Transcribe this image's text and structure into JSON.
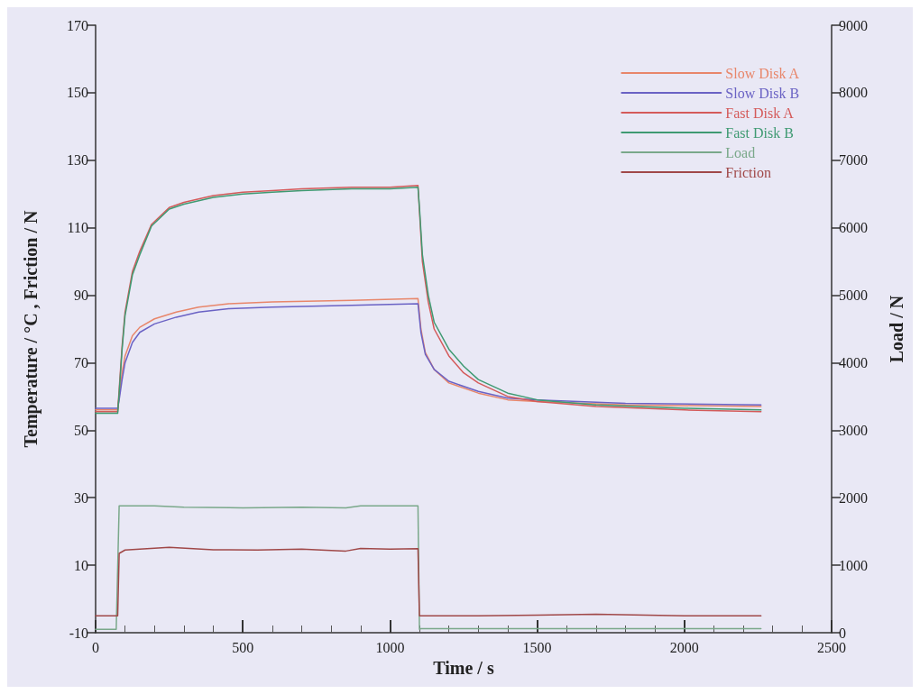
{
  "chart_data": {
    "type": "line",
    "xlabel": "Time / s",
    "ylabel": "Temperature / °C , Friction / N",
    "y2label": "Load / N",
    "xlim": [
      0,
      2500
    ],
    "xticks": [
      0,
      500,
      1000,
      1500,
      2000,
      2500
    ],
    "ylim": [
      -10,
      170
    ],
    "yticks": [
      -10,
      10,
      30,
      50,
      70,
      90,
      110,
      130,
      150,
      170
    ],
    "y2lim": [
      0,
      9000
    ],
    "y2ticks": [
      0,
      1000,
      2000,
      3000,
      4000,
      5000,
      6000,
      7000,
      8000,
      9000
    ],
    "grid": false,
    "legend": "top right",
    "marker": "none",
    "line_style": "solid",
    "series": [
      {
        "name": "Slow Disk A",
        "color": "#e8866a",
        "x": [
          0,
          75,
          80,
          90,
          100,
          125,
          150,
          200,
          274,
          350,
          452,
          600,
          870,
          1095,
          1105,
          1120,
          1150,
          1200,
          1300,
          1400,
          1500,
          1800,
          2260
        ],
        "values": [
          56,
          56,
          60,
          67,
          72,
          78,
          80.5,
          83,
          85,
          86.5,
          87.5,
          88,
          88.5,
          89,
          80,
          73,
          68,
          64,
          61,
          59,
          58.5,
          57.5,
          57
        ]
      },
      {
        "name": "Slow Disk B",
        "color": "#6a62c4",
        "x": [
          0,
          75,
          80,
          90,
          100,
          125,
          150,
          200,
          274,
          350,
          452,
          600,
          870,
          1095,
          1105,
          1120,
          1150,
          1200,
          1300,
          1400,
          1500,
          1800,
          2260
        ],
        "values": [
          56.5,
          56.5,
          59,
          65,
          70,
          76,
          79,
          81.5,
          83.5,
          85,
          86,
          86.5,
          87,
          87.5,
          79,
          72.5,
          68,
          64.5,
          61.5,
          59.5,
          59,
          58,
          57.5
        ]
      },
      {
        "name": "Fast Disk A",
        "color": "#d45a5a",
        "x": [
          0,
          75,
          80,
          90,
          100,
          125,
          150,
          190,
          250,
          300,
          400,
          500,
          600,
          700,
          870,
          1000,
          1095,
          1100,
          1110,
          1130,
          1150,
          1200,
          1250,
          1300,
          1400,
          1500,
          1700,
          2000,
          2260
        ],
        "values": [
          55.5,
          55.5,
          62,
          75,
          85,
          97,
          103,
          111,
          116,
          117.5,
          119.5,
          120.5,
          121,
          121.5,
          122,
          122,
          122.5,
          115,
          100,
          88,
          80,
          72,
          67,
          64,
          60,
          58.5,
          57,
          56,
          55.5
        ]
      },
      {
        "name": "Fast Disk B",
        "color": "#3f9a72",
        "x": [
          0,
          75,
          80,
          90,
          100,
          125,
          150,
          190,
          250,
          300,
          400,
          500,
          600,
          700,
          870,
          1000,
          1095,
          1100,
          1110,
          1130,
          1150,
          1200,
          1250,
          1300,
          1400,
          1500,
          1700,
          2000,
          2260
        ],
        "values": [
          55,
          55,
          61,
          74,
          84,
          96,
          102,
          110.5,
          115.5,
          117,
          119,
          120,
          120.5,
          121,
          121.5,
          121.5,
          122,
          116,
          102,
          90,
          82,
          74,
          69,
          65,
          61,
          59,
          57.5,
          56.5,
          56
        ]
      },
      {
        "name": "Load",
        "color": "#7aa88a",
        "axis": "y2",
        "x": [
          0,
          70,
          80,
          200,
          300,
          500,
          700,
          850,
          900,
          1095,
          1100,
          1105,
          2260
        ],
        "values": [
          50,
          50,
          1880,
          1880,
          1860,
          1850,
          1860,
          1850,
          1880,
          1880,
          50,
          60,
          60
        ]
      },
      {
        "name": "Friction",
        "color": "#a04848",
        "x": [
          0,
          75,
          80,
          100,
          250,
          400,
          550,
          700,
          850,
          900,
          1000,
          1095,
          1100,
          1105,
          1300,
          1500,
          1700,
          2000,
          2260
        ],
        "values": [
          -5,
          -5,
          13.5,
          14.5,
          15.3,
          14.6,
          14.5,
          14.8,
          14.2,
          15,
          14.8,
          14.9,
          -5,
          -5,
          -5,
          -4.8,
          -4.5,
          -5,
          -5
        ]
      }
    ]
  }
}
